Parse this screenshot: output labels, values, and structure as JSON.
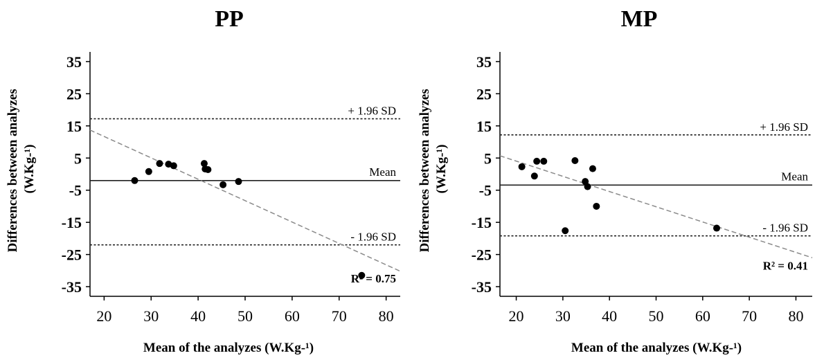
{
  "chart_data": [
    {
      "type": "scatter",
      "title": "PP",
      "xlabel": "Mean of the analyzes (W.Kg-¹)",
      "ylabel": "Differences between analyzes (W.Kg-¹)",
      "xlim": [
        17,
        83
      ],
      "ylim": [
        -38,
        38
      ],
      "xticks": [
        20,
        30,
        40,
        50,
        60,
        70,
        80
      ],
      "yticks": [
        35,
        25,
        15,
        5,
        -5,
        -15,
        -25,
        -35
      ],
      "xtick_labels": [
        "20",
        "30",
        "40",
        "50",
        "60",
        "70",
        "80"
      ],
      "ytick_labels": [
        "35",
        "25",
        "15",
        "5",
        "-5",
        "-15",
        "-25",
        "-35"
      ],
      "points": [
        {
          "x": 26.5,
          "y": -2
        },
        {
          "x": 29.5,
          "y": 0.8
        },
        {
          "x": 31.8,
          "y": 3.3
        },
        {
          "x": 33.7,
          "y": 3.1
        },
        {
          "x": 34.8,
          "y": 2.6
        },
        {
          "x": 41.3,
          "y": 3.3
        },
        {
          "x": 41.5,
          "y": 1.6
        },
        {
          "x": 42.1,
          "y": 1.4
        },
        {
          "x": 45.3,
          "y": -3.3
        },
        {
          "x": 48.6,
          "y": -2.3
        },
        {
          "x": 74.8,
          "y": -31.5
        }
      ],
      "mean_line": {
        "value": -2,
        "label": "Mean"
      },
      "upper_line": {
        "value": 17.2,
        "label": "+ 1.96 SD"
      },
      "lower_line": {
        "value": -22,
        "label": "- 1.96 SD"
      },
      "regression": {
        "x_start": 17,
        "y_start": 13.7,
        "x_end": 83,
        "y_end": -30.2
      },
      "r2_label": "R² = 0.75"
    },
    {
      "type": "scatter",
      "title": "MP",
      "xlabel": "Mean of the analyzes (W.Kg-¹)",
      "ylabel": "Differences between analyzes (W.Kg-¹)",
      "xlim": [
        16.5,
        83.5
      ],
      "ylim": [
        -38,
        38
      ],
      "xticks": [
        20,
        30,
        40,
        50,
        60,
        70,
        80
      ],
      "yticks": [
        35,
        25,
        15,
        5,
        -5,
        -15,
        -25,
        -35
      ],
      "xtick_labels": [
        "20",
        "30",
        "40",
        "50",
        "60",
        "70",
        "80"
      ],
      "ytick_labels": [
        "35",
        "25",
        "15",
        "5",
        "-5",
        "-15",
        "-25",
        "-35"
      ],
      "points": [
        {
          "x": 21.2,
          "y": 2.3
        },
        {
          "x": 23.9,
          "y": -0.6
        },
        {
          "x": 24.4,
          "y": 4.0
        },
        {
          "x": 25.9,
          "y": 4.0
        },
        {
          "x": 30.5,
          "y": -17.6
        },
        {
          "x": 32.6,
          "y": 4.2
        },
        {
          "x": 34.8,
          "y": -2.3
        },
        {
          "x": 35.3,
          "y": -3.9
        },
        {
          "x": 36.4,
          "y": 1.7
        },
        {
          "x": 37.2,
          "y": -10.0
        },
        {
          "x": 63.0,
          "y": -16.8
        }
      ],
      "mean_line": {
        "value": -3.4,
        "label": "Mean"
      },
      "upper_line": {
        "value": 12.2,
        "label": "+ 1.96 SD"
      },
      "lower_line": {
        "value": -19.2,
        "label": "- 1.96 SD"
      },
      "regression": {
        "x_start": 16.5,
        "y_start": 5.7,
        "x_end": 83.5,
        "y_end": -26.0
      },
      "r2_label": "R² = 0.41"
    }
  ]
}
